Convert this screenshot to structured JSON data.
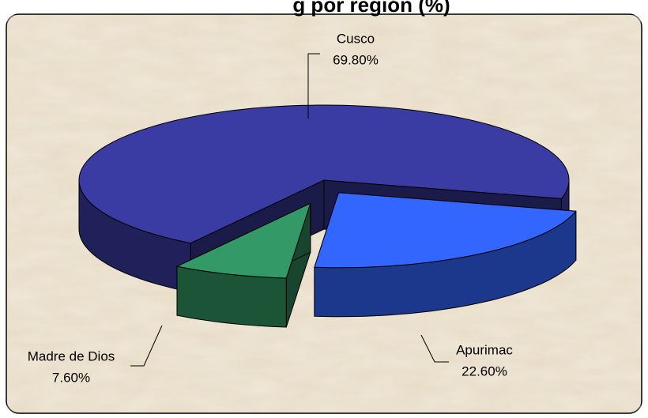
{
  "chart_data": {
    "type": "pie3d",
    "title": "g por región (%)",
    "categories": [
      "Cusco",
      "Apurimac",
      "Madre de Dios"
    ],
    "values": [
      69.8,
      22.6,
      7.6
    ],
    "value_labels": [
      "69.80%",
      "22.60%",
      "7.60%"
    ],
    "colors": [
      "#3b3ba4",
      "#3366ff",
      "#339966"
    ]
  }
}
